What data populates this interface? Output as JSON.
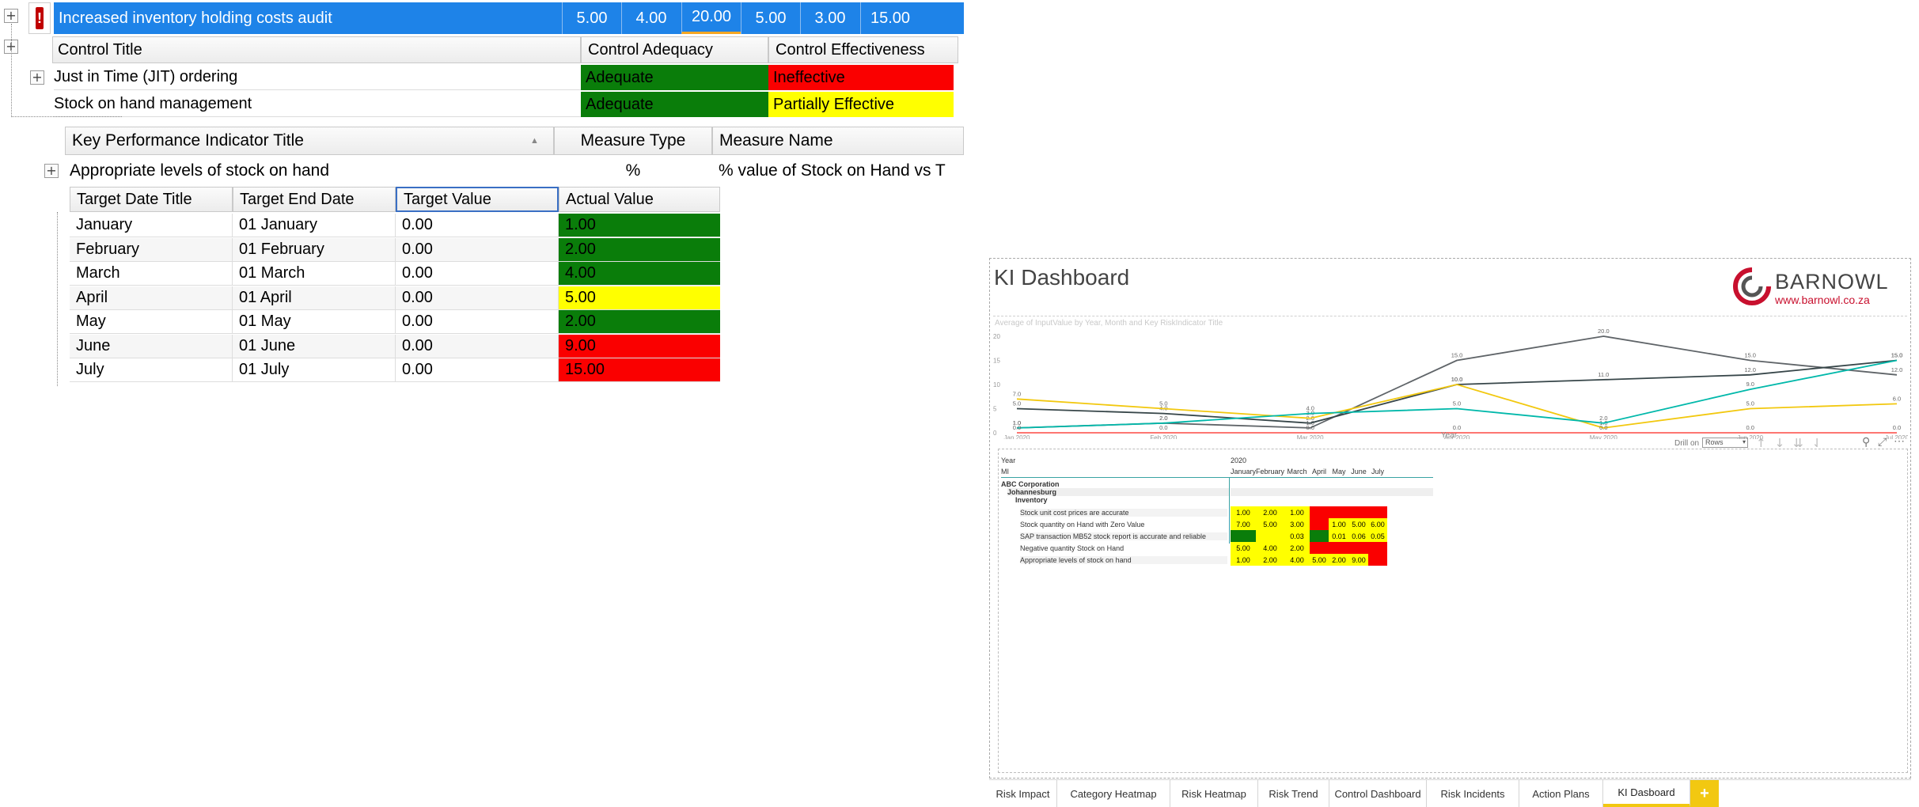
{
  "risk": {
    "title": "Increased inventory holding costs audit",
    "values": [
      "5.00",
      "4.00",
      "20.00",
      "5.00",
      "3.00",
      "15.00"
    ]
  },
  "controls": {
    "headers": [
      "Control Title",
      "Control Adequacy",
      "Control Effectiveness"
    ],
    "rows": [
      {
        "title": "Just in Time (JIT) ordering",
        "adequacy": "Adequate",
        "effectiveness": "Ineffective"
      },
      {
        "title": "Stock on hand management",
        "adequacy": "Adequate",
        "effectiveness": "Partially Effective"
      }
    ]
  },
  "kpi": {
    "headers": [
      "Key Performance Indicator Title",
      "Measure Type",
      "Measure Name"
    ],
    "row": {
      "title": "Appropriate levels of stock on hand",
      "type": "%",
      "name": "% value of Stock on Hand vs T"
    }
  },
  "targets": {
    "headers": [
      "Target Date Title",
      "Target End Date",
      "Target Value",
      "Actual Value"
    ],
    "rows": [
      {
        "title": "January",
        "end": "01 January",
        "target": "0.00",
        "actual": "1.00",
        "color": "#0a7d0a"
      },
      {
        "title": "February",
        "end": "01 February",
        "target": "0.00",
        "actual": "2.00",
        "color": "#0a7d0a"
      },
      {
        "title": "March",
        "end": "01 March",
        "target": "0.00",
        "actual": "4.00",
        "color": "#0a7d0a"
      },
      {
        "title": "April",
        "end": "01 April",
        "target": "0.00",
        "actual": "5.00",
        "color": "#ffff00"
      },
      {
        "title": "May",
        "end": "01 May",
        "target": "0.00",
        "actual": "2.00",
        "color": "#0a7d0a"
      },
      {
        "title": "June",
        "end": "01 June",
        "target": "0.00",
        "actual": "9.00",
        "color": "#fa0000"
      },
      {
        "title": "July",
        "end": "01 July",
        "target": "0.00",
        "actual": "15.00",
        "color": "#fa0000"
      }
    ]
  },
  "dashboard": {
    "title": "KI Dashboard",
    "brand": "BARNOWL",
    "brand_url": "www.barnowl.co.za",
    "chart_subtitle": "Average of InputValue by Year, Month and Key RiskIndicator Title",
    "x_axis_title": "Year",
    "drill_label": "Drill on",
    "drill_value": "Rows",
    "matrix": {
      "year_label": "Year",
      "year_value": "2020",
      "mi_label": "MI",
      "months": [
        "January",
        "February",
        "March",
        "April",
        "May",
        "June",
        "July"
      ],
      "org": "ABC Corporation",
      "region": "Johannesburg",
      "category": "Inventory",
      "rows": [
        {
          "label": "Stock unit cost prices are accurate",
          "values": [
            "1.00",
            "2.00",
            "1.00",
            "",
            "",
            "",
            ""
          ],
          "colors": [
            "#ffff00",
            "#ffff00",
            "#ffff00",
            "#fa0000",
            "#fa0000",
            "#fa0000",
            "#fa0000"
          ]
        },
        {
          "label": "Stock quantity on Hand with Zero Value",
          "values": [
            "7.00",
            "5.00",
            "3.00",
            "",
            "1.00",
            "5.00",
            "6.00"
          ],
          "colors": [
            "#ffff00",
            "#ffff00",
            "#ffff00",
            "#fa0000",
            "#ffff00",
            "#ffff00",
            "#ffff00"
          ]
        },
        {
          "label": "SAP transaction MB52 stock report is accurate and reliable",
          "values": [
            "",
            "",
            "0.03",
            "",
            "0.01",
            "0.06",
            "0.05"
          ],
          "colors": [
            "#0a7d0a",
            "#ffff00",
            "#ffff00",
            "#0a7d0a",
            "#ffff00",
            "#ffff00",
            "#ffff00"
          ]
        },
        {
          "label": "Negative quantity Stock on Hand",
          "values": [
            "5.00",
            "4.00",
            "2.00",
            "",
            "",
            "",
            ""
          ],
          "colors": [
            "#ffff00",
            "#ffff00",
            "#ffff00",
            "#fa0000",
            "#fa0000",
            "#fa0000",
            "#fa0000"
          ]
        },
        {
          "label": "Appropriate levels of stock on hand",
          "values": [
            "1.00",
            "2.00",
            "4.00",
            "5.00",
            "2.00",
            "9.00",
            ""
          ],
          "colors": [
            "#ffff00",
            "#ffff00",
            "#ffff00",
            "#ffff00",
            "#ffff00",
            "#ffff00",
            "#fa0000"
          ]
        }
      ]
    },
    "tabs": [
      "Risk Impact",
      "Category Heatmap",
      "Risk Heatmap",
      "Risk Trend",
      "Control Dashboard",
      "Risk Incidents",
      "Action Plans",
      "KI Dasboard"
    ],
    "active_tab": "KI Dasboard",
    "add_tab": "+"
  },
  "chart_data": {
    "type": "line",
    "title": "",
    "subtitle": "Average of InputValue by Year, Month and Key RiskIndicator Title",
    "xlabel": "Year",
    "ylabel": "",
    "categories": [
      "Jan 2020",
      "Feb 2020",
      "Mar 2020",
      "Apr 2020",
      "May 2020",
      "Jun 2020",
      "Jul 2020"
    ],
    "ylim": [
      0,
      20
    ],
    "yticks": [
      0,
      5,
      10,
      15,
      20
    ],
    "grid": false,
    "series": [
      {
        "color": "#5f6468",
        "values": [
          1.0,
          2.0,
          1.0,
          15.0,
          20.0,
          15.0,
          12.0
        ]
      },
      {
        "color": "#374649",
        "values": [
          5.0,
          4.0,
          2.0,
          10.0,
          11.0,
          12.0,
          15.0
        ]
      },
      {
        "color": "#f2c80f",
        "values": [
          7.0,
          5.0,
          3.0,
          10.0,
          1.0,
          5.0,
          6.0
        ]
      },
      {
        "color": "#01b8aa",
        "values": [
          1.0,
          2.0,
          4.0,
          5.0,
          2.0,
          9.0,
          15.0
        ]
      },
      {
        "color": "#fd625e",
        "values": [
          0.0,
          0.0,
          0.0,
          0.0,
          0.0,
          0.0,
          0.0
        ]
      }
    ]
  }
}
